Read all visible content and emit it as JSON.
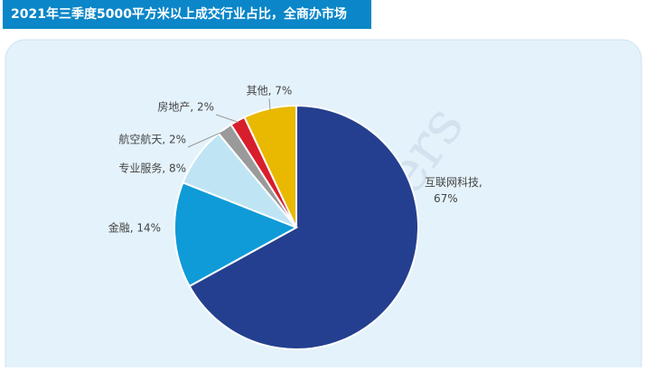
{
  "chart_data": {
    "type": "pie",
    "title": "2021年三季度5000平方米以上成交行业占比，全商办市场",
    "watermark": "Colliers",
    "categories": [
      "互联网科技",
      "金融",
      "专业服务",
      "航空航天",
      "房地产",
      "其他"
    ],
    "values": [
      67,
      14,
      8,
      2,
      2,
      7
    ],
    "value_labels": [
      "互联网科技, 67%",
      "金融, 14%",
      "专业服务, 8%",
      "航空航天, 2%",
      "房地产, 2%",
      "其他, 7%"
    ],
    "colors": [
      "#243f8f",
      "#0f9bd7",
      "#bfe5f5",
      "#9a9a9a",
      "#d81e2c",
      "#e8b900"
    ]
  }
}
